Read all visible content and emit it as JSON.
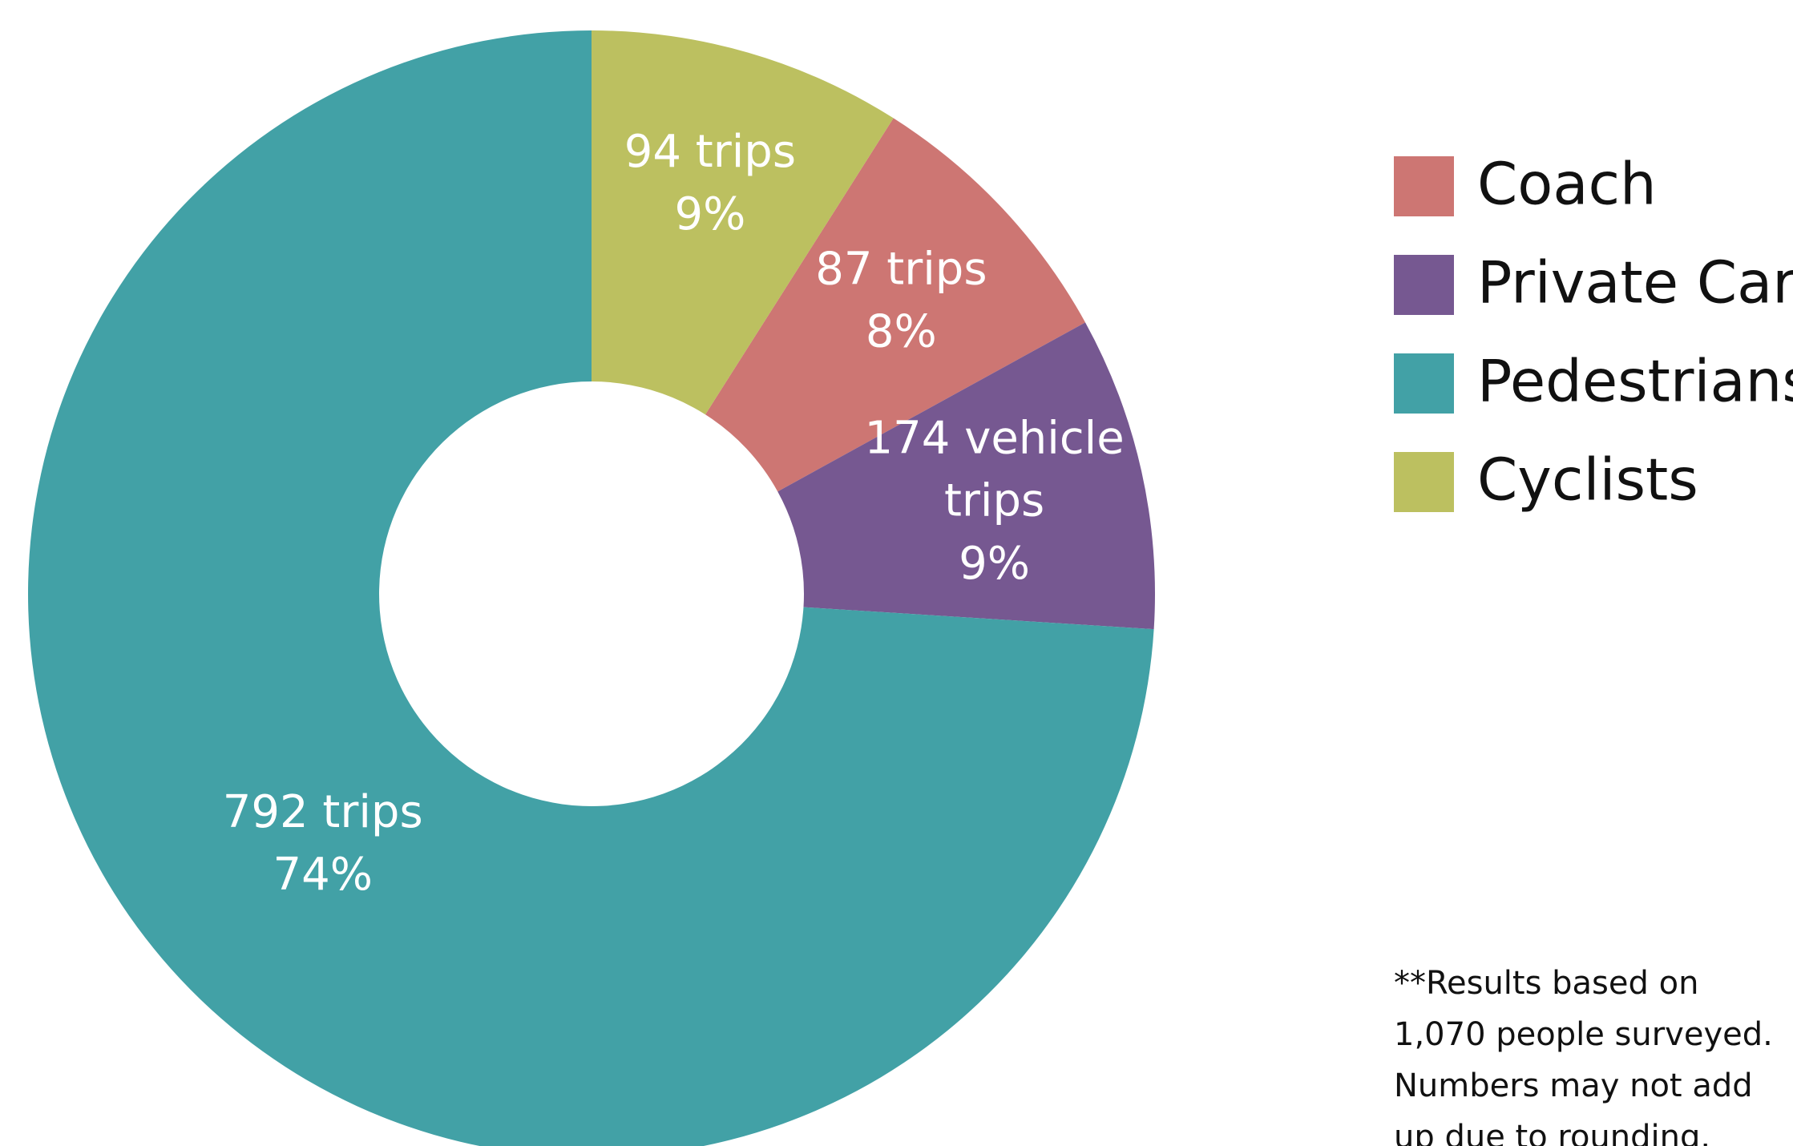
{
  "chart_data": {
    "type": "pie",
    "donut": true,
    "categories": [
      "Coach",
      "Private Car",
      "Pedestrians",
      "Cyclists"
    ],
    "values": [
      8,
      9,
      74,
      9
    ],
    "value_labels": [
      "8%",
      "9%",
      "74%",
      "9%"
    ],
    "count_labels": [
      "87 trips",
      "174 vehicle trips",
      "792 trips",
      "94 trips"
    ],
    "colors": [
      "#cd7673",
      "#765891",
      "#42a1a6",
      "#bcc060"
    ],
    "footnote": [
      "**Results based on",
      "1,070 people surveyed.",
      "Numbers may not add",
      "up due to rounding."
    ]
  }
}
